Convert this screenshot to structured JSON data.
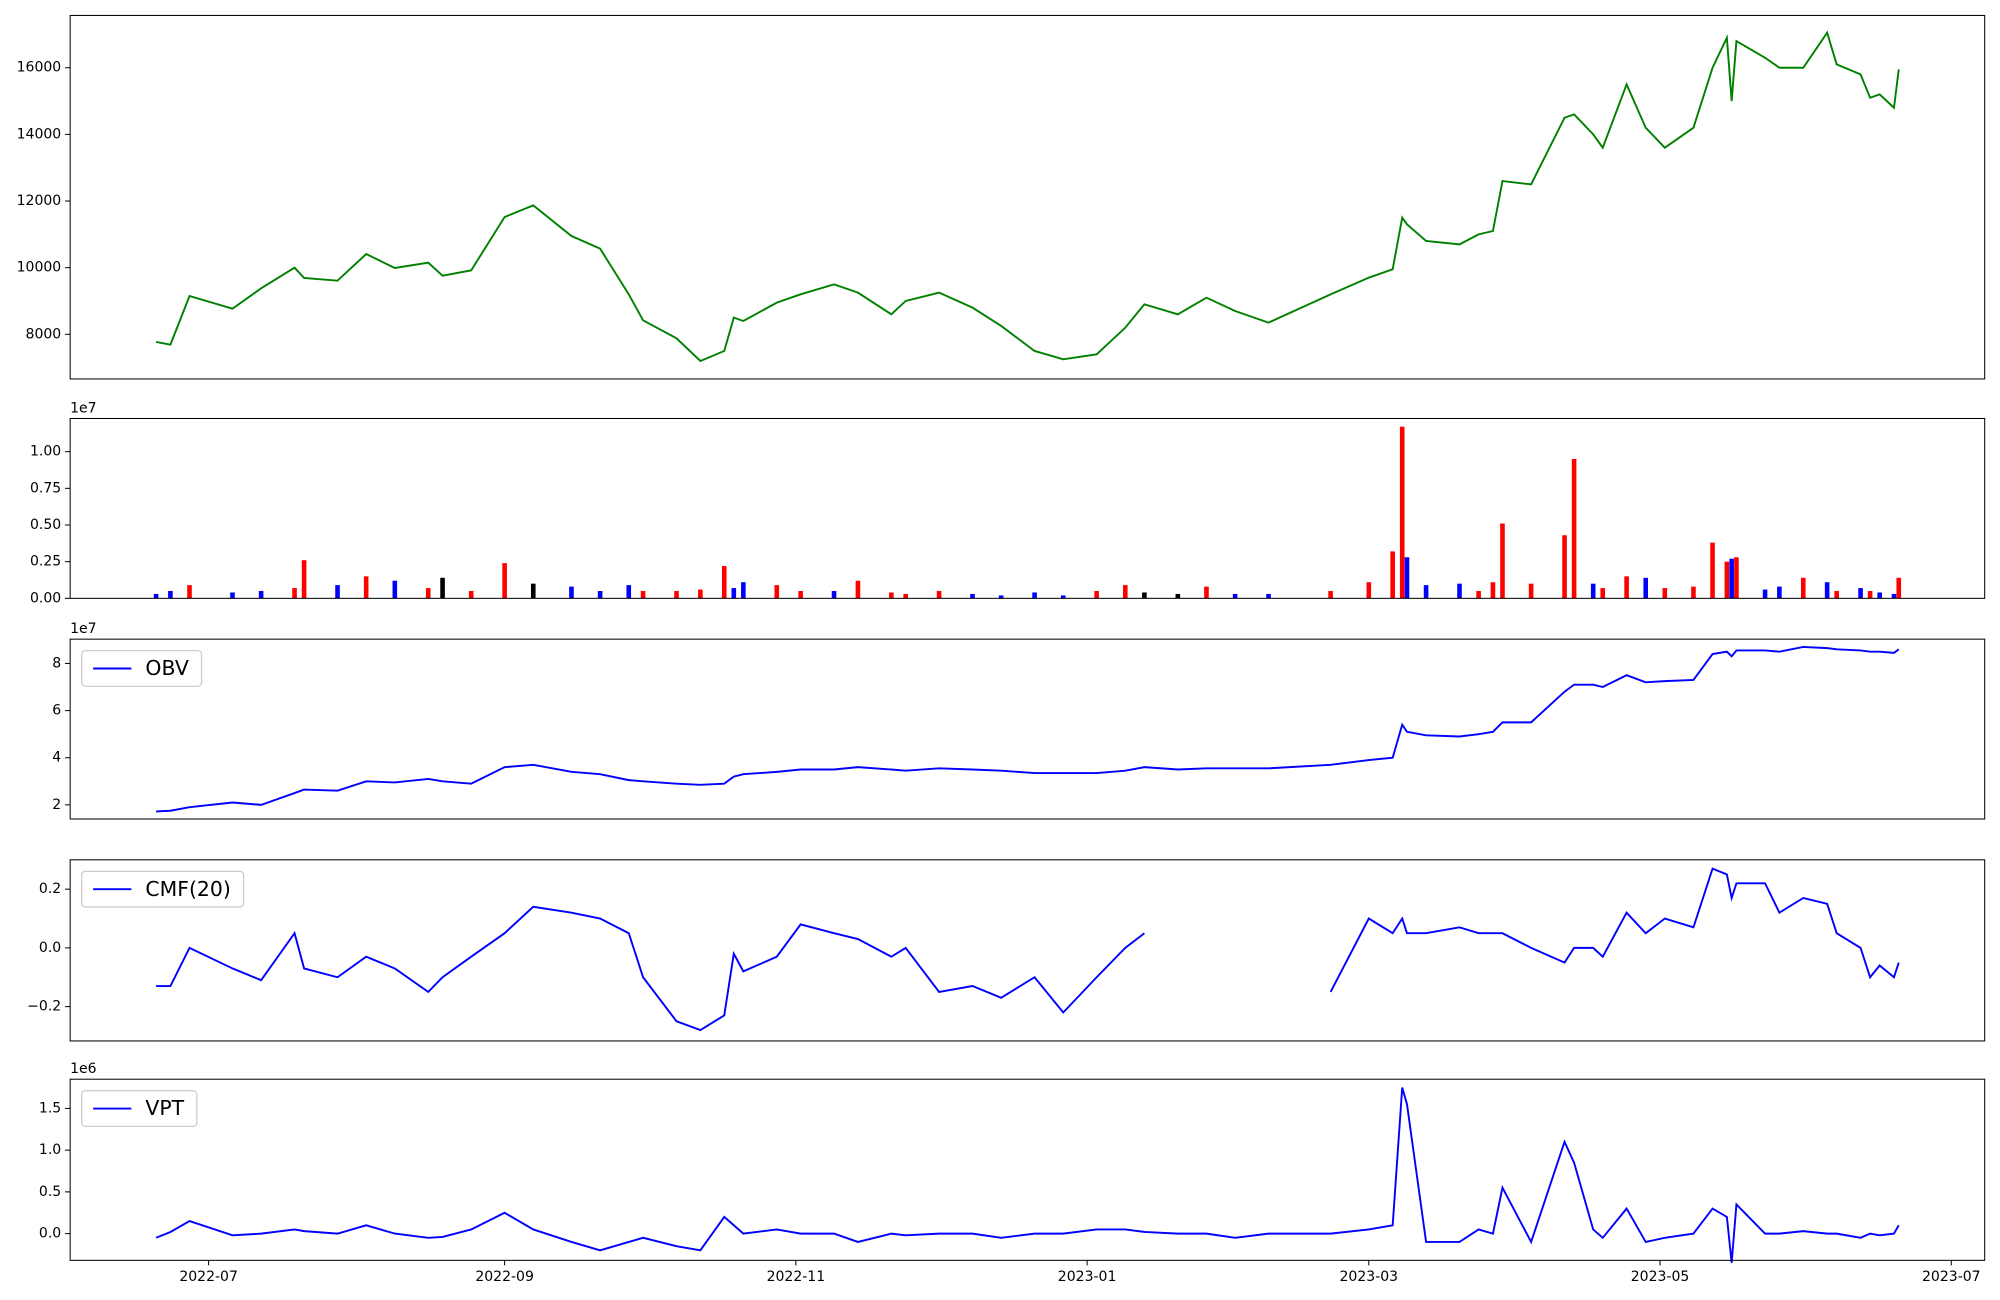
{
  "chart_data": [
    {
      "type": "line",
      "x": [
        "2022-06-20",
        "2022-06-23",
        "2022-06-27",
        "2022-07-06",
        "2022-07-12",
        "2022-07-19",
        "2022-07-21",
        "2022-07-28",
        "2022-08-03",
        "2022-08-09",
        "2022-08-16",
        "2022-08-19",
        "2022-08-25",
        "2022-09-01",
        "2022-09-07",
        "2022-09-15",
        "2022-09-21",
        "2022-09-27",
        "2022-09-30",
        "2022-10-07",
        "2022-10-12",
        "2022-10-17",
        "2022-10-19",
        "2022-10-21",
        "2022-10-28",
        "2022-11-02",
        "2022-11-09",
        "2022-11-14",
        "2022-11-21",
        "2022-11-24",
        "2022-12-01",
        "2022-12-08",
        "2022-12-14",
        "2022-12-21",
        "2022-12-27",
        "2023-01-03",
        "2023-01-09",
        "2023-01-13",
        "2023-01-20",
        "2023-01-26",
        "2023-02-01",
        "2023-02-08",
        "2023-02-21",
        "2023-03-01",
        "2023-03-06",
        "2023-03-08",
        "2023-03-09",
        "2023-03-13",
        "2023-03-20",
        "2023-03-24",
        "2023-03-27",
        "2023-03-29",
        "2023-04-04",
        "2023-04-11",
        "2023-04-13",
        "2023-04-17",
        "2023-04-19",
        "2023-04-24",
        "2023-04-28",
        "2023-05-02",
        "2023-05-08",
        "2023-05-12",
        "2023-05-15",
        "2023-05-16",
        "2023-05-17",
        "2023-05-23",
        "2023-05-26",
        "2023-05-31",
        "2023-06-05",
        "2023-06-07",
        "2023-06-12",
        "2023-06-14",
        "2023-06-16",
        "2023-06-19",
        "2023-06-20"
      ],
      "series": [
        {
          "color": "green",
          "values": [
            7770,
            7690,
            9150,
            8770,
            9380,
            10000,
            9690,
            9610,
            10410,
            9990,
            10150,
            9760,
            9920,
            11520,
            11870,
            10950,
            10570,
            9200,
            8420,
            7880,
            7200,
            7500,
            8500,
            8400,
            8950,
            9200,
            9500,
            9250,
            8600,
            9000,
            9250,
            8800,
            8250,
            7500,
            7250,
            7400,
            8200,
            8900,
            8600,
            9100,
            8700,
            8350,
            9200,
            9700,
            9950,
            11500,
            11300,
            10800,
            10700,
            11000,
            11100,
            12600,
            12500,
            14500,
            14600,
            14000,
            13600,
            15500,
            14200,
            13600,
            14200,
            16000,
            16900,
            15000,
            16800,
            16300,
            16000,
            16000,
            17050,
            16100,
            15800,
            15100,
            15200,
            14800,
            15950
          ]
        }
      ],
      "xlim": [
        "2022-06-02",
        "2023-07-08"
      ],
      "ylim": [
        6660,
        17570
      ],
      "yticks": [
        8000,
        10000,
        12000,
        14000,
        16000
      ]
    },
    {
      "type": "bar",
      "x": [
        "2022-06-20",
        "2022-06-23",
        "2022-06-27",
        "2022-07-06",
        "2022-07-12",
        "2022-07-19",
        "2022-07-21",
        "2022-07-28",
        "2022-08-03",
        "2022-08-09",
        "2022-08-16",
        "2022-08-19",
        "2022-08-25",
        "2022-09-01",
        "2022-09-07",
        "2022-09-15",
        "2022-09-21",
        "2022-09-27",
        "2022-09-30",
        "2022-10-07",
        "2022-10-12",
        "2022-10-17",
        "2022-10-19",
        "2022-10-21",
        "2022-10-28",
        "2022-11-02",
        "2022-11-09",
        "2022-11-14",
        "2022-11-21",
        "2022-11-24",
        "2022-12-01",
        "2022-12-08",
        "2022-12-14",
        "2022-12-21",
        "2022-12-27",
        "2023-01-03",
        "2023-01-09",
        "2023-01-13",
        "2023-01-20",
        "2023-01-26",
        "2023-02-01",
        "2023-02-08",
        "2023-02-21",
        "2023-03-01",
        "2023-03-06",
        "2023-03-08",
        "2023-03-09",
        "2023-03-13",
        "2023-03-20",
        "2023-03-24",
        "2023-03-27",
        "2023-03-29",
        "2023-04-04",
        "2023-04-11",
        "2023-04-13",
        "2023-04-17",
        "2023-04-19",
        "2023-04-24",
        "2023-04-28",
        "2023-05-02",
        "2023-05-08",
        "2023-05-12",
        "2023-05-15",
        "2023-05-16",
        "2023-05-17",
        "2023-05-23",
        "2023-05-26",
        "2023-05-31",
        "2023-06-05",
        "2023-06-07",
        "2023-06-12",
        "2023-06-14",
        "2023-06-16",
        "2023-06-19",
        "2023-06-20"
      ],
      "values": [
        0.03,
        0.05,
        0.09,
        0.04,
        0.05,
        0.07,
        0.26,
        0.09,
        0.15,
        0.12,
        0.07,
        0.14,
        0.05,
        0.24,
        0.1,
        0.08,
        0.05,
        0.09,
        0.05,
        0.05,
        0.06,
        0.22,
        0.07,
        0.11,
        0.09,
        0.05,
        0.05,
        0.12,
        0.04,
        0.03,
        0.05,
        0.03,
        0.02,
        0.04,
        0.02,
        0.05,
        0.09,
        0.04,
        0.03,
        0.08,
        0.03,
        0.03,
        0.05,
        0.11,
        0.32,
        1.17,
        0.28,
        0.09,
        0.1,
        0.05,
        0.11,
        0.51,
        0.1,
        0.43,
        0.95,
        0.1,
        0.07,
        0.15,
        0.14,
        0.07,
        0.08,
        0.38,
        0.25,
        0.27,
        0.28,
        0.06,
        0.08,
        0.14,
        0.11,
        0.05,
        0.07,
        0.05,
        0.04,
        0.03,
        0.14
      ],
      "colors": [
        "blue",
        "blue",
        "red",
        "blue",
        "blue",
        "red",
        "red",
        "blue",
        "red",
        "blue",
        "red",
        "black",
        "red",
        "red",
        "black",
        "blue",
        "blue",
        "blue",
        "red",
        "red",
        "red",
        "red",
        "blue",
        "blue",
        "red",
        "red",
        "blue",
        "red",
        "red",
        "red",
        "red",
        "blue",
        "blue",
        "blue",
        "blue",
        "red",
        "red",
        "black",
        "black",
        "red",
        "blue",
        "blue",
        "red",
        "red",
        "red",
        "red",
        "blue",
        "blue",
        "blue",
        "red",
        "red",
        "red",
        "red",
        "red",
        "red",
        "blue",
        "red",
        "red",
        "blue",
        "red",
        "red",
        "red",
        "red",
        "blue",
        "red",
        "blue",
        "blue",
        "red",
        "blue",
        "red",
        "blue",
        "red",
        "blue",
        "blue",
        "red"
      ],
      "xlim": [
        "2022-06-02",
        "2023-07-08"
      ],
      "ylim": [
        0,
        1.226
      ],
      "y_offset_label": "1e7",
      "yticks": [
        {
          "value": 0,
          "label": "0.00"
        },
        0.25,
        {
          "value": 0.5,
          "label": "0.50"
        },
        0.75,
        {
          "value": 1,
          "label": "1.00"
        }
      ]
    },
    {
      "type": "line",
      "x": [
        "2022-06-20",
        "2022-06-23",
        "2022-06-27",
        "2022-07-06",
        "2022-07-12",
        "2022-07-19",
        "2022-07-21",
        "2022-07-28",
        "2022-08-03",
        "2022-08-09",
        "2022-08-16",
        "2022-08-19",
        "2022-08-25",
        "2022-09-01",
        "2022-09-07",
        "2022-09-15",
        "2022-09-21",
        "2022-09-27",
        "2022-09-30",
        "2022-10-07",
        "2022-10-12",
        "2022-10-17",
        "2022-10-19",
        "2022-10-21",
        "2022-10-28",
        "2022-11-02",
        "2022-11-09",
        "2022-11-14",
        "2022-11-21",
        "2022-11-24",
        "2022-12-01",
        "2022-12-08",
        "2022-12-14",
        "2022-12-21",
        "2022-12-27",
        "2023-01-03",
        "2023-01-09",
        "2023-01-13",
        "2023-01-20",
        "2023-01-26",
        "2023-02-01",
        "2023-02-08",
        "2023-02-21",
        "2023-03-01",
        "2023-03-06",
        "2023-03-08",
        "2023-03-09",
        "2023-03-13",
        "2023-03-20",
        "2023-03-24",
        "2023-03-27",
        "2023-03-29",
        "2023-04-04",
        "2023-04-11",
        "2023-04-13",
        "2023-04-17",
        "2023-04-19",
        "2023-04-24",
        "2023-04-28",
        "2023-05-02",
        "2023-05-08",
        "2023-05-12",
        "2023-05-15",
        "2023-05-16",
        "2023-05-17",
        "2023-05-23",
        "2023-05-26",
        "2023-05-31",
        "2023-06-05",
        "2023-06-07",
        "2023-06-12",
        "2023-06-14",
        "2023-06-16",
        "2023-06-19",
        "2023-06-20"
      ],
      "series": [
        {
          "name": "OBV",
          "color": "blue",
          "values": [
            1.72,
            1.75,
            1.9,
            2.1,
            2.0,
            2.5,
            2.65,
            2.6,
            3.0,
            2.95,
            3.1,
            3.0,
            2.9,
            3.6,
            3.7,
            3.4,
            3.3,
            3.05,
            3.0,
            2.9,
            2.85,
            2.9,
            3.2,
            3.3,
            3.4,
            3.5,
            3.5,
            3.6,
            3.5,
            3.45,
            3.55,
            3.5,
            3.45,
            3.35,
            3.35,
            3.35,
            3.45,
            3.6,
            3.5,
            3.55,
            3.55,
            3.55,
            3.7,
            3.9,
            4.0,
            5.4,
            5.1,
            4.95,
            4.9,
            5.0,
            5.1,
            5.5,
            5.5,
            6.8,
            7.1,
            7.1,
            7.0,
            7.5,
            7.2,
            7.25,
            7.3,
            8.4,
            8.5,
            8.3,
            8.55,
            8.55,
            8.5,
            8.7,
            8.65,
            8.6,
            8.55,
            8.5,
            8.5,
            8.45,
            8.6
          ]
        }
      ],
      "xlim": [
        "2022-06-02",
        "2023-07-08"
      ],
      "ylim": [
        1.4,
        9.03
      ],
      "y_offset_label": "1e7",
      "yticks": [
        2,
        4,
        6,
        8
      ],
      "legend": "upper left"
    },
    {
      "type": "line",
      "x": [
        "2022-06-20",
        "2022-06-23",
        "2022-06-27",
        "2022-07-06",
        "2022-07-12",
        "2022-07-19",
        "2022-07-21",
        "2022-07-28",
        "2022-08-03",
        "2022-08-09",
        "2022-08-16",
        "2022-08-19",
        "2022-08-25",
        "2022-09-01",
        "2022-09-07",
        "2022-09-15",
        "2022-09-21",
        "2022-09-27",
        "2022-09-30",
        "2022-10-07",
        "2022-10-12",
        "2022-10-17",
        "2022-10-19",
        "2022-10-21",
        "2022-10-28",
        "2022-11-02",
        "2022-11-09",
        "2022-11-14",
        "2022-11-21",
        "2022-11-24",
        "2022-12-01",
        "2022-12-08",
        "2022-12-14",
        "2022-12-21",
        "2022-12-27",
        "2023-01-03",
        "2023-01-09",
        "2023-01-13",
        "2023-01-20",
        "2023-01-26",
        "2023-02-01",
        "2023-02-08",
        "2023-02-21",
        "2023-03-01",
        "2023-03-06",
        "2023-03-08",
        "2023-03-09",
        "2023-03-13",
        "2023-03-20",
        "2023-03-24",
        "2023-03-27",
        "2023-03-29",
        "2023-04-04",
        "2023-04-11",
        "2023-04-13",
        "2023-04-17",
        "2023-04-19",
        "2023-04-24",
        "2023-04-28",
        "2023-05-02",
        "2023-05-08",
        "2023-05-12",
        "2023-05-15",
        "2023-05-16",
        "2023-05-17",
        "2023-05-23",
        "2023-05-26",
        "2023-05-31",
        "2023-06-05",
        "2023-06-07",
        "2023-06-12",
        "2023-06-14",
        "2023-06-16",
        "2023-06-19",
        "2023-06-20"
      ],
      "series": [
        {
          "name": "CMF(20)",
          "color": "blue",
          "values": [
            -0.13,
            -0.13,
            0.0,
            -0.07,
            -0.11,
            0.05,
            -0.07,
            -0.1,
            -0.03,
            -0.07,
            -0.15,
            -0.1,
            -0.03,
            0.05,
            0.14,
            0.12,
            0.1,
            0.05,
            -0.1,
            -0.25,
            -0.28,
            -0.23,
            -0.02,
            -0.08,
            -0.03,
            0.08,
            0.05,
            0.03,
            -0.03,
            0.0,
            -0.15,
            -0.13,
            -0.17,
            -0.1,
            -0.22,
            -0.1,
            0.0,
            0.05,
            null,
            null,
            null,
            null,
            -0.15,
            0.1,
            0.05,
            0.1,
            0.05,
            0.05,
            0.07,
            0.05,
            0.05,
            0.05,
            0.0,
            -0.05,
            0.0,
            0.0,
            -0.03,
            0.12,
            0.05,
            0.1,
            0.07,
            0.27,
            0.25,
            0.17,
            0.22,
            0.22,
            0.12,
            0.17,
            0.15,
            0.05,
            0.0,
            -0.1,
            -0.06,
            -0.1,
            -0.05
          ]
        }
      ],
      "xlim": [
        "2022-06-02",
        "2023-07-08"
      ],
      "ylim": [
        -0.317,
        0.3
      ],
      "yticks": [
        {
          "value": -0.2,
          "label": "−0.2"
        },
        {
          "value": 0,
          "label": "0.0"
        },
        0.2
      ],
      "legend": "upper left"
    },
    {
      "type": "line",
      "x": [
        "2022-06-20",
        "2022-06-23",
        "2022-06-27",
        "2022-07-06",
        "2022-07-12",
        "2022-07-19",
        "2022-07-21",
        "2022-07-28",
        "2022-08-03",
        "2022-08-09",
        "2022-08-16",
        "2022-08-19",
        "2022-08-25",
        "2022-09-01",
        "2022-09-07",
        "2022-09-15",
        "2022-09-21",
        "2022-09-27",
        "2022-09-30",
        "2022-10-07",
        "2022-10-12",
        "2022-10-17",
        "2022-10-19",
        "2022-10-21",
        "2022-10-28",
        "2022-11-02",
        "2022-11-09",
        "2022-11-14",
        "2022-11-21",
        "2022-11-24",
        "2022-12-01",
        "2022-12-08",
        "2022-12-14",
        "2022-12-21",
        "2022-12-27",
        "2023-01-03",
        "2023-01-09",
        "2023-01-13",
        "2023-01-20",
        "2023-01-26",
        "2023-02-01",
        "2023-02-08",
        "2023-02-21",
        "2023-03-01",
        "2023-03-06",
        "2023-03-08",
        "2023-03-09",
        "2023-03-13",
        "2023-03-20",
        "2023-03-24",
        "2023-03-27",
        "2023-03-29",
        "2023-04-04",
        "2023-04-11",
        "2023-04-13",
        "2023-04-17",
        "2023-04-19",
        "2023-04-24",
        "2023-04-28",
        "2023-05-02",
        "2023-05-08",
        "2023-05-12",
        "2023-05-15",
        "2023-05-16",
        "2023-05-17",
        "2023-05-23",
        "2023-05-26",
        "2023-05-31",
        "2023-06-05",
        "2023-06-07",
        "2023-06-12",
        "2023-06-14",
        "2023-06-16",
        "2023-06-19",
        "2023-06-20"
      ],
      "series": [
        {
          "name": "VPT",
          "color": "blue",
          "values": [
            -0.05,
            0.02,
            0.15,
            -0.02,
            0.0,
            0.05,
            0.03,
            0.0,
            0.1,
            0.0,
            -0.05,
            -0.04,
            0.05,
            0.25,
            0.05,
            -0.1,
            -0.2,
            -0.1,
            -0.05,
            -0.15,
            -0.2,
            0.2,
            0.1,
            0.0,
            0.05,
            0.0,
            0.0,
            -0.1,
            0.0,
            -0.02,
            0.0,
            0.0,
            -0.05,
            0.0,
            0.0,
            0.05,
            0.05,
            0.02,
            0.0,
            0.0,
            -0.05,
            0.0,
            0.0,
            0.05,
            0.1,
            1.75,
            1.55,
            -0.1,
            -0.1,
            0.05,
            0.0,
            0.55,
            -0.1,
            1.1,
            0.85,
            0.05,
            -0.05,
            0.3,
            -0.1,
            -0.05,
            0.0,
            0.3,
            0.2,
            -0.35,
            0.35,
            0.0,
            0.0,
            0.03,
            0.0,
            0.0,
            -0.05,
            0.0,
            -0.02,
            0.0,
            0.1
          ]
        }
      ],
      "xlim": [
        "2022-06-02",
        "2023-07-08"
      ],
      "ylim": [
        -0.32,
        1.85
      ],
      "y_offset_label": "1e6",
      "yticks": [
        {
          "value": 0,
          "label": "0.0"
        },
        0.5,
        {
          "value": 1,
          "label": "1.0"
        },
        1.5
      ],
      "legend": "upper left",
      "xticks": [
        {
          "value": "2022-07-01",
          "label": "2022-07"
        },
        {
          "value": "2022-09-01",
          "label": "2022-09"
        },
        {
          "value": "2022-11-01",
          "label": "2022-11"
        },
        {
          "value": "2023-01-01",
          "label": "2023-01"
        },
        {
          "value": "2023-03-01",
          "label": "2023-03"
        },
        {
          "value": "2023-05-01",
          "label": "2023-05"
        },
        {
          "value": "2023-07-01",
          "label": "2023-07"
        }
      ]
    }
  ]
}
